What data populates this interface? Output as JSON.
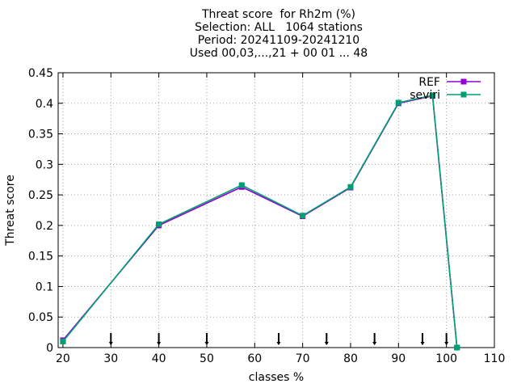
{
  "chart_data": {
    "type": "line",
    "title_lines": [
      "Threat score  for Rh2m (%)",
      "Selection: ALL   1064 stations",
      "Period: 20241109-20241210",
      "Used 00,03,...,21 + 00 01 ... 48"
    ],
    "xlabel": "classes %",
    "ylabel": "Threat score",
    "xlim": [
      19,
      110
    ],
    "ylim": [
      0,
      0.45
    ],
    "xticks": [
      20,
      30,
      40,
      50,
      60,
      70,
      80,
      90,
      100,
      110
    ],
    "yticks": [
      0,
      0.05,
      0.1,
      0.15,
      0.2,
      0.25,
      0.3,
      0.35,
      0.4,
      0.45
    ],
    "xtick_labels": [
      "20",
      "30",
      "40",
      "50",
      "60",
      "70",
      "80",
      "90",
      "100",
      "110"
    ],
    "ytick_labels": [
      "0",
      "0.05",
      "0.1",
      "0.15",
      "0.2",
      "0.25",
      "0.3",
      "0.35",
      "0.4",
      "0.45"
    ],
    "grid": true,
    "legend_position": "top-right",
    "series": [
      {
        "name": "REF",
        "color": "#9400d3",
        "x": [
          20,
          40,
          57.3,
          70,
          80,
          90,
          97.1,
          102.2
        ],
        "y": [
          0.012,
          0.2,
          0.263,
          0.215,
          0.262,
          0.4,
          0.412,
          0
        ]
      },
      {
        "name": "seviri",
        "color": "#009e73",
        "x": [
          20,
          40,
          57.3,
          70,
          80,
          90,
          97.1,
          102.2
        ],
        "y": [
          0.01,
          0.202,
          0.266,
          0.216,
          0.263,
          0.401,
          0.413,
          0
        ]
      }
    ],
    "class_markers": [
      30,
      40,
      50,
      65,
      75,
      85,
      95,
      100
    ]
  }
}
